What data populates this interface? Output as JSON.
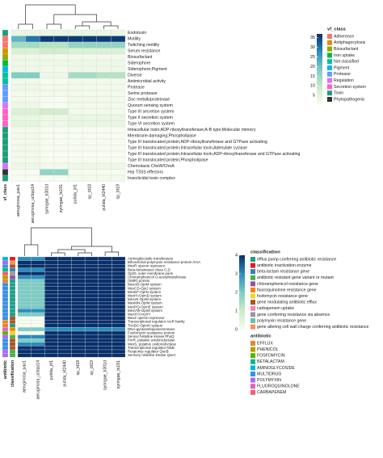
{
  "chart_data": [
    {
      "type": "heatmap",
      "columns": [
        "aeruginosa_pao1",
        "aeruginosa_ucbpp14",
        "syringae_b301d",
        "syringae_ts191",
        "putida_jrt1",
        "sp_bt18",
        "putida_kt2440",
        "sp_bt19"
      ],
      "rows": [
        "Endotoxin",
        "Motility",
        "Twitching motility",
        "Serum resistance",
        "Biosurfactant",
        "Siderophore",
        "Siderophore;Pigment",
        "Diverse",
        "Antimicrobial activity",
        "Protease",
        "Serine protease",
        "Zinc metalloproteinase",
        "Quorum sensing system",
        "Type III secretion system",
        "Type II secretion system",
        "Type VI secretion system",
        "Intracellular toxin;ADP-ribosyltransferase;A-B type;Molecular mimicry",
        "Membrane-damaging;Phospholipase",
        "Type III translocated protein;ADP-ribosyltransferase and GTPase activating",
        "Type III translocated protein;Intracellular toxin;Adenylate cyclase",
        "Type III translocated protein;Intracellular toxin;ADP-ribosyltransferase and GTPase activating",
        "Type III translocated protein;Phospholipase",
        "Chemotaxis CheW/CheA",
        "Hrp T3SS effectors",
        "Insecticidal toxin complex"
      ],
      "values": [
        [
          3,
          3,
          3,
          3,
          3,
          3,
          3,
          3
        ],
        [
          22,
          30,
          36,
          36,
          36,
          36,
          36,
          36
        ],
        [
          14,
          14,
          12,
          12,
          16,
          16,
          16,
          16
        ],
        [
          6,
          6,
          8,
          8,
          6,
          6,
          6,
          6
        ],
        [
          2,
          2,
          1,
          1,
          1,
          1,
          1,
          1
        ],
        [
          2,
          2,
          2,
          2,
          2,
          2,
          2,
          2
        ],
        [
          2,
          2,
          1,
          1,
          2,
          2,
          2,
          2
        ],
        [
          18,
          18,
          2,
          2,
          14,
          14,
          12,
          12
        ],
        [
          1,
          1,
          0,
          0,
          1,
          1,
          1,
          1
        ],
        [
          2,
          2,
          1,
          1,
          1,
          1,
          1,
          1
        ],
        [
          1,
          1,
          1,
          1,
          1,
          1,
          1,
          1
        ],
        [
          1,
          1,
          0,
          0,
          1,
          1,
          1,
          1
        ],
        [
          2,
          2,
          0,
          0,
          1,
          1,
          1,
          1
        ],
        [
          6,
          6,
          8,
          8,
          1,
          1,
          1,
          1
        ],
        [
          3,
          3,
          2,
          2,
          3,
          3,
          3,
          3
        ],
        [
          4,
          4,
          2,
          2,
          3,
          3,
          3,
          3
        ],
        [
          1,
          1,
          0,
          0,
          0,
          0,
          0,
          0
        ],
        [
          1,
          1,
          0,
          0,
          0,
          0,
          0,
          0
        ],
        [
          1,
          1,
          0,
          0,
          0,
          0,
          0,
          0
        ],
        [
          1,
          1,
          0,
          0,
          0,
          0,
          0,
          0
        ],
        [
          1,
          1,
          0,
          0,
          0,
          0,
          0,
          0
        ],
        [
          1,
          1,
          0,
          0,
          0,
          0,
          0,
          0
        ],
        [
          2,
          2,
          1,
          1,
          2,
          2,
          2,
          2
        ],
        [
          0,
          0,
          16,
          16,
          0,
          0,
          0,
          0
        ],
        [
          0,
          0,
          0,
          0,
          1,
          1,
          1,
          1
        ]
      ],
      "colorscale": {
        "colors": [
          "#f7fcf0",
          "#ccebc5",
          "#7bccc4",
          "#2b8cbe",
          "#08306b"
        ],
        "lim": [
          0,
          37
        ],
        "ticks": [
          5,
          10,
          15,
          20,
          25,
          30,
          35
        ]
      },
      "row_annotations": [
        {
          "title": "vf_class",
          "categories": [
            {
              "name": "Adherence",
              "color": "#f8766d"
            },
            {
              "name": "Antiphagocytosis",
              "color": "#d39200"
            },
            {
              "name": "Biosurfactant",
              "color": "#93aa00"
            },
            {
              "name": "Iron uptake",
              "color": "#00ba38"
            },
            {
              "name": "Not classified",
              "color": "#00c19f"
            },
            {
              "name": "Pigment",
              "color": "#00b9e3"
            },
            {
              "name": "Protease",
              "color": "#619cff"
            },
            {
              "name": "Regulation",
              "color": "#db72fb"
            },
            {
              "name": "Secretion system",
              "color": "#ff61c3"
            },
            {
              "name": "Toxin",
              "color": "#1b9e77"
            },
            {
              "name": "Phytopathogenic",
              "color": "#333333"
            }
          ],
          "values": [
            9,
            0,
            0,
            1,
            2,
            3,
            5,
            4,
            4,
            6,
            6,
            6,
            7,
            8,
            8,
            8,
            9,
            9,
            9,
            9,
            9,
            9,
            7,
            10,
            9
          ]
        }
      ]
    },
    {
      "type": "heatmap",
      "columns": [
        "aeruginosa_pao1",
        "aeruginosa_ucbpp14",
        "putida_jrt1",
        "putida_kt2440",
        "sp_bt18",
        "sp_bt19",
        "syringae_b301d",
        "syringae_ts191"
      ],
      "rows": [
        "Aminoglycoside transferases",
        "Bifunctional polymyxin resistance protein ArnA",
        "MexR operon repressor",
        "Beta-lactamases class C,D",
        "OprD, outer membrane porin",
        "Chloramphenicol O-acetyltransferase",
        "(SMR) protein",
        "MexAB-OprM system",
        "MexCD-OprJ system",
        "MexEF-OprN system",
        "MexHI-OpmD system",
        "MexJK-OprM system",
        "MexMN-OprM system",
        "MexPQ-OpmE system",
        "MexVW-OprM system",
        "MexXY/AxyXY",
        "MexZ operon repressor",
        "Transcriptional regulator AcrR family",
        "TriABC-OpmH system",
        "DNA-gyrases/topoisomerases",
        "Fosfomycin resistance protein",
        "Sensor histidine kinase PhoQ",
        "PvrR, putative oxidoreductase",
        "MexS, putative oxidoreductase",
        "Transcriptional regulator NfxB",
        "Response regulator QseB",
        "Sensory histidine kinase QseC"
      ],
      "values": [
        [
          3,
          3,
          4,
          4,
          4,
          4,
          4,
          4
        ],
        [
          4,
          4,
          4,
          4,
          4,
          4,
          4,
          4
        ],
        [
          4,
          4,
          4,
          4,
          4,
          4,
          4,
          4
        ],
        [
          3,
          3,
          4,
          4,
          4,
          4,
          4,
          4
        ],
        [
          4,
          4,
          4,
          4,
          4,
          4,
          4,
          4
        ],
        [
          3,
          3,
          4,
          4,
          4,
          4,
          4,
          4
        ],
        [
          2,
          2,
          4,
          4,
          4,
          4,
          4,
          4
        ],
        [
          2,
          2,
          4,
          4,
          4,
          4,
          4,
          4
        ],
        [
          2,
          2,
          4,
          4,
          4,
          4,
          4,
          4
        ],
        [
          2,
          2,
          4,
          4,
          4,
          4,
          4,
          4
        ],
        [
          2,
          2,
          4,
          4,
          4,
          4,
          4,
          4
        ],
        [
          2,
          2,
          4,
          4,
          4,
          4,
          4,
          4
        ],
        [
          2,
          2,
          4,
          4,
          4,
          4,
          4,
          4
        ],
        [
          2,
          2,
          4,
          4,
          4,
          4,
          4,
          4
        ],
        [
          3,
          3,
          4,
          4,
          4,
          4,
          4,
          4
        ],
        [
          2,
          2,
          4,
          4,
          4,
          4,
          4,
          4
        ],
        [
          0,
          0,
          4,
          4,
          4,
          4,
          4,
          4
        ],
        [
          0,
          0,
          4,
          4,
          4,
          4,
          4,
          4
        ],
        [
          0,
          0,
          4,
          4,
          4,
          4,
          4,
          4
        ],
        [
          2,
          2,
          3,
          3,
          3,
          3,
          3,
          3
        ],
        [
          0,
          0,
          4,
          4,
          4,
          4,
          4,
          4
        ],
        [
          3,
          3,
          4,
          4,
          4,
          4,
          4,
          4
        ],
        [
          2,
          2,
          4,
          4,
          4,
          4,
          4,
          4
        ],
        [
          3,
          3,
          4,
          4,
          4,
          4,
          4,
          4
        ],
        [
          4,
          4,
          4,
          4,
          4,
          4,
          4,
          4
        ],
        [
          4,
          4,
          4,
          4,
          4,
          4,
          4,
          4
        ],
        [
          4,
          4,
          4,
          4,
          4,
          4,
          4,
          4
        ]
      ],
      "colorscale": {
        "colors": [
          "#f7fcf0",
          "#ccebc5",
          "#7bccc4",
          "#2b8cbe",
          "#08306b"
        ],
        "lim": [
          0,
          4
        ],
        "ticks": [
          0,
          1,
          2,
          3,
          4
        ]
      },
      "row_annotations": [
        {
          "title": "antibiotic",
          "categories": [
            {
              "name": "EFFLUX",
              "color": "#e5862e"
            },
            {
              "name": "PHENICOL",
              "color": "#b79f00"
            },
            {
              "name": "FOSFOMYCIN",
              "color": "#5bb300"
            },
            {
              "name": "BETALACTAM",
              "color": "#00ba8b"
            },
            {
              "name": "AMINOGLYCOSIDE",
              "color": "#00b5d6"
            },
            {
              "name": "MULTIDRUG",
              "color": "#3b8fe0"
            },
            {
              "name": "POLYMYXIN",
              "color": "#a66cf2"
            },
            {
              "name": "FLUOROQUINOLONE",
              "color": "#e35fc1"
            },
            {
              "name": "CARBAPENEM",
              "color": "#f05d6e"
            }
          ],
          "values": [
            4,
            6,
            5,
            3,
            8,
            1,
            0,
            5,
            5,
            5,
            5,
            5,
            5,
            5,
            5,
            5,
            5,
            0,
            0,
            7,
            2,
            6,
            5,
            5,
            5,
            6,
            6
          ]
        },
        {
          "title": "classification",
          "categories": [
            {
              "name": "efflux pump conferring antibiotic resistance",
              "color": "#1f9e89"
            },
            {
              "name": "antibiotic inactivation enzyme",
              "color": "#e41a1c"
            },
            {
              "name": "beta-lactam resistance gene",
              "color": "#377eb8"
            },
            {
              "name": "antibiotic resistant gene variant or mutant",
              "color": "#4daf4a"
            },
            {
              "name": "chloramphenicol resistance gene",
              "color": "#984ea3"
            },
            {
              "name": "fluoroquinolone resistance gene",
              "color": "#ff7f00"
            },
            {
              "name": "fosfomycin resistance gene",
              "color": "#e6d92a"
            },
            {
              "name": "gene modulating antibiotic efflux",
              "color": "#a65628"
            },
            {
              "name": "carbapenem uptake",
              "color": "#f781bf"
            },
            {
              "name": "gene conferring resistance via absence",
              "color": "#999999"
            },
            {
              "name": "polymyxin resistance gene",
              "color": "#66c2a5"
            },
            {
              "name": "gene altering cell wall charge conferring antibiotic resistance",
              "color": "#fc8d62"
            }
          ],
          "values": [
            1,
            11,
            7,
            2,
            9,
            4,
            0,
            0,
            0,
            0,
            0,
            0,
            0,
            0,
            0,
            0,
            7,
            7,
            0,
            5,
            6,
            3,
            7,
            7,
            7,
            3,
            3
          ]
        }
      ]
    }
  ]
}
